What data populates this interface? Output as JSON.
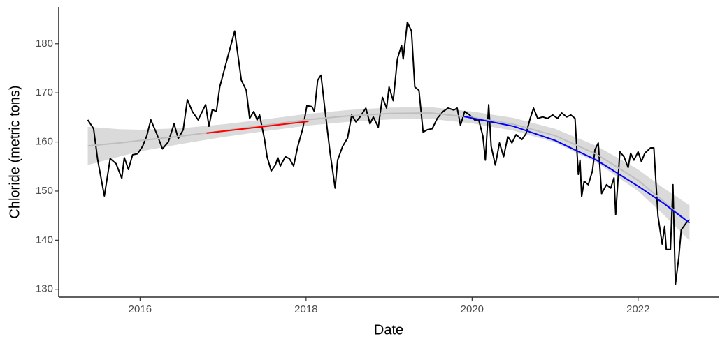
{
  "chart_data": {
    "type": "line",
    "x_label": "Date",
    "y_label": "Chloride (metric tons)",
    "xlim": [
      2015.02,
      2022.97
    ],
    "xticks": [
      2016,
      2018,
      2020,
      2022
    ],
    "ylim": [
      128.4,
      187.5
    ],
    "yticks": [
      130,
      140,
      150,
      160,
      170,
      180
    ],
    "grid": false,
    "band": {
      "color": "#d3d3d3",
      "x": [
        2015.37,
        2015.75,
        2016,
        2016.5,
        2017,
        2017.5,
        2018,
        2018.5,
        2019,
        2019.5,
        2020,
        2020.5,
        2021,
        2021.5,
        2022,
        2022.3,
        2022.62
      ],
      "lower": [
        155.3,
        157.0,
        158.1,
        159.6,
        161.0,
        162.2,
        163.3,
        164.1,
        164.6,
        164.7,
        163.8,
        162.3,
        159.9,
        155.8,
        150.0,
        145.3,
        139.9
      ],
      "upper": [
        163.1,
        162.6,
        162.5,
        162.8,
        163.6,
        164.6,
        165.7,
        166.5,
        167.0,
        167.1,
        166.2,
        164.9,
        162.7,
        159.2,
        154.4,
        150.7,
        147.1
      ]
    },
    "series": [
      {
        "color": "#000000",
        "x": [
          2015.37,
          2015.44,
          2015.49,
          2015.57,
          2015.64,
          2015.71,
          2015.78,
          2015.81,
          2015.86,
          2015.91,
          2015.97,
          2016.03,
          2016.08,
          2016.13,
          2016.2,
          2016.27,
          2016.34,
          2016.41,
          2016.46,
          2016.52,
          2016.57,
          2016.63,
          2016.7,
          2016.79,
          2016.83,
          2016.87,
          2016.92,
          2016.96,
          2017.14,
          2017.16,
          2017.22,
          2017.28,
          2017.32,
          2017.37,
          2017.41,
          2017.44,
          2017.5,
          2017.53,
          2017.58,
          2017.63,
          2017.66,
          2017.69,
          2017.75,
          2017.8,
          2017.85,
          2017.9,
          2017.96,
          2018.01,
          2018.07,
          2018.1,
          2018.14,
          2018.18,
          2018.23,
          2018.29,
          2018.35,
          2018.38,
          2018.44,
          2018.5,
          2018.55,
          2018.6,
          2018.65,
          2018.72,
          2018.77,
          2018.81,
          2018.87,
          2018.92,
          2018.97,
          2019.0,
          2019.05,
          2019.1,
          2019.15,
          2019.17,
          2019.22,
          2019.27,
          2019.31,
          2019.36,
          2019.41,
          2019.46,
          2019.52,
          2019.58,
          2019.65,
          2019.71,
          2019.78,
          2019.82,
          2019.86,
          2019.91,
          2019.97,
          2020.03,
          2020.08,
          2020.13,
          2020.16,
          2020.2,
          2020.23,
          2020.28,
          2020.33,
          2020.38,
          2020.43,
          2020.48,
          2020.53,
          2020.6,
          2020.65,
          2020.7,
          2020.74,
          2020.79,
          2020.85,
          2020.91,
          2020.97,
          2021.03,
          2021.08,
          2021.14,
          2021.19,
          2021.24,
          2021.28,
          2021.3,
          2021.32,
          2021.35,
          2021.4,
          2021.45,
          2021.48,
          2021.52,
          2021.56,
          2021.62,
          2021.67,
          2021.71,
          2021.73,
          2021.78,
          2021.83,
          2021.88,
          2021.91,
          2021.95,
          2022.0,
          2022.04,
          2022.08,
          2022.15,
          2022.19,
          2022.24,
          2022.29,
          2022.32,
          2022.34,
          2022.39,
          2022.42,
          2022.45,
          2022.49,
          2022.52,
          2022.58,
          2022.62
        ],
        "values": [
          164.5,
          162.7,
          156.3,
          149.0,
          156.6,
          155.6,
          152.6,
          156.8,
          154.4,
          157.4,
          157.6,
          159.1,
          161.2,
          164.5,
          161.7,
          158.6,
          160.0,
          163.7,
          160.7,
          162.5,
          168.6,
          166.2,
          164.5,
          167.6,
          163.2,
          166.6,
          166.2,
          171.2,
          182.6,
          180.1,
          172.6,
          170.5,
          164.8,
          166.2,
          164.5,
          165.5,
          160.5,
          157.0,
          154.1,
          155.3,
          156.8,
          155.1,
          157.0,
          156.6,
          155.1,
          159.1,
          162.7,
          167.4,
          167.2,
          166.2,
          172.6,
          173.6,
          166.2,
          157.7,
          150.6,
          156.3,
          159.1,
          160.8,
          165.5,
          164.1,
          165.1,
          166.9,
          163.7,
          165.1,
          163.0,
          169.1,
          166.9,
          171.2,
          168.4,
          176.9,
          179.7,
          176.9,
          184.4,
          182.6,
          171.2,
          170.5,
          162.0,
          162.5,
          162.7,
          164.8,
          166.2,
          166.9,
          166.5,
          166.9,
          163.4,
          166.2,
          165.5,
          164.5,
          164.5,
          161.2,
          156.3,
          167.6,
          159.1,
          155.3,
          159.8,
          157.0,
          161.1,
          159.8,
          161.5,
          160.5,
          161.7,
          164.8,
          166.9,
          164.8,
          165.1,
          164.8,
          165.5,
          164.8,
          165.9,
          165.1,
          165.5,
          164.8,
          153.4,
          156.3,
          148.9,
          152.0,
          151.3,
          154.1,
          158.4,
          159.8,
          149.5,
          151.3,
          150.6,
          152.7,
          145.2,
          158.0,
          157.0,
          154.8,
          157.7,
          156.3,
          158.0,
          156.0,
          157.7,
          158.8,
          158.8,
          144.9,
          139.2,
          142.8,
          138.1,
          138.1,
          151.3,
          131.0,
          136.4,
          142.1,
          143.5,
          144.2
        ]
      },
      {
        "color": "#bebebe",
        "x": [
          2015.37,
          2015.75,
          2016,
          2016.5,
          2017,
          2017.5,
          2018,
          2018.5,
          2019,
          2019.5,
          2020,
          2020.5,
          2021,
          2021.5,
          2022,
          2022.3,
          2022.62
        ],
        "values": [
          159.2,
          159.8,
          160.3,
          161.2,
          162.3,
          163.4,
          164.5,
          165.3,
          165.8,
          165.9,
          165.0,
          163.6,
          161.3,
          157.5,
          152.2,
          148.0,
          143.5
        ]
      },
      {
        "color": "#ff0000",
        "x": [
          2016.8,
          2018.03
        ],
        "values": [
          161.8,
          164.2
        ]
      },
      {
        "color": "#0000ff",
        "x": [
          2019.9,
          2020.5,
          2021,
          2021.5,
          2022,
          2022.3,
          2022.62
        ],
        "values": [
          165.2,
          163.2,
          160.3,
          156.3,
          151.0,
          147.6,
          143.5
        ]
      }
    ]
  }
}
